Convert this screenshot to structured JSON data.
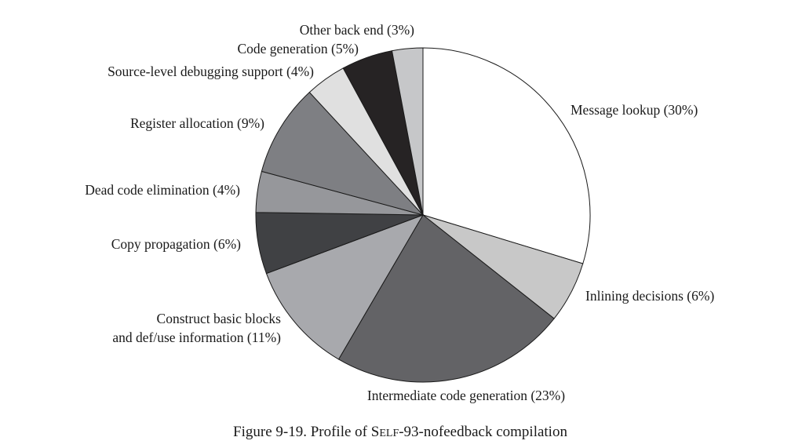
{
  "chart_data": {
    "type": "pie",
    "slices": [
      {
        "label": "Message lookup (30%)",
        "value": 30,
        "color": "#ffffff"
      },
      {
        "label": "Inlining decisions (6%)",
        "value": 6,
        "color": "#c8c8c8"
      },
      {
        "label": "Intermediate code generation (23%)",
        "value": 23,
        "color": "#636366"
      },
      {
        "label": [
          "Construct basic blocks",
          "and def/use information (11%)"
        ],
        "value": 11,
        "color": "#a8a9ad"
      },
      {
        "label": "Copy propagation (6%)",
        "value": 6,
        "color": "#404144"
      },
      {
        "label": "Dead code elimination (4%)",
        "value": 4,
        "color": "#96979b"
      },
      {
        "label": "Register allocation (9%)",
        "value": 9,
        "color": "#7e7f83"
      },
      {
        "label": "Source-level debugging support (4%)",
        "value": 4,
        "color": "#e0e0e0"
      },
      {
        "label": "Code generation (5%)",
        "value": 5,
        "color": "#262324"
      },
      {
        "label": "Other back end (3%)",
        "value": 3,
        "color": "#c6c7c9"
      }
    ],
    "caption": {
      "prefix": "Figure 9-19.  Profile of ",
      "name_initial": "S",
      "name_rest": "ELF",
      "suffix": "-93-nofeedback compilation"
    }
  }
}
